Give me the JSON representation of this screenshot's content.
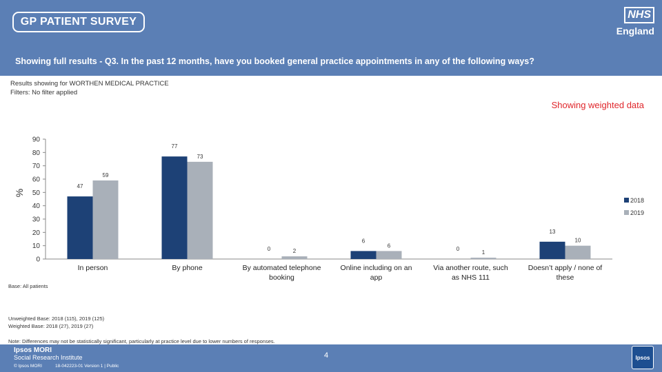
{
  "header": {
    "logo_text": "GP PATIENT SURVEY",
    "nhs_mark": "NHS",
    "nhs_region": "England",
    "question": "Showing full results - Q3.  In the past 12 months, have you booked  general practice appointments in any of  the following ways?"
  },
  "meta": {
    "results_for": "Results showing for WORTHEN MEDICAL PRACTICE",
    "filters": "Filters: No filter applied",
    "weighted_note": "Showing weighted data"
  },
  "colors": {
    "header_bg": "#5b7fb5",
    "series_2018": "#1d4176",
    "series_2019": "#a9b0b9",
    "weighted_note": "#e0262b"
  },
  "chart_data": {
    "type": "bar",
    "ylabel": "%",
    "ylim": [
      0,
      90
    ],
    "yticks": [
      0,
      10,
      20,
      30,
      40,
      50,
      60,
      70,
      80,
      90
    ],
    "legend_position": "right",
    "categories": [
      "In person",
      "By phone",
      "By automated telephone booking",
      "Online including on an app",
      "Via another route, such as NHS 111",
      "Doesn’t apply / none of these"
    ],
    "series": [
      {
        "name": "2018",
        "values": [
          47,
          77,
          0,
          6,
          0,
          13
        ]
      },
      {
        "name": "2019",
        "values": [
          59,
          73,
          2,
          6,
          1,
          10
        ]
      }
    ]
  },
  "base": {
    "label": "Base: All patients",
    "unweighted": "Unweighted Base: 2018 (115), 2019 (125)",
    "weighted": "Weighted Base: 2018 (27), 2019 (27)",
    "note": "Note: Differences may not be statistically significant, particularly at practice level due to lower numbers of responses."
  },
  "footer": {
    "brand": "Ipsos MORI",
    "brand_sub": "Social Research Institute",
    "copyright": "© Ipsos MORI",
    "job_ref": "18-042223-01 Version 1 | Public",
    "page": "4",
    "logo": "Ipsos"
  }
}
